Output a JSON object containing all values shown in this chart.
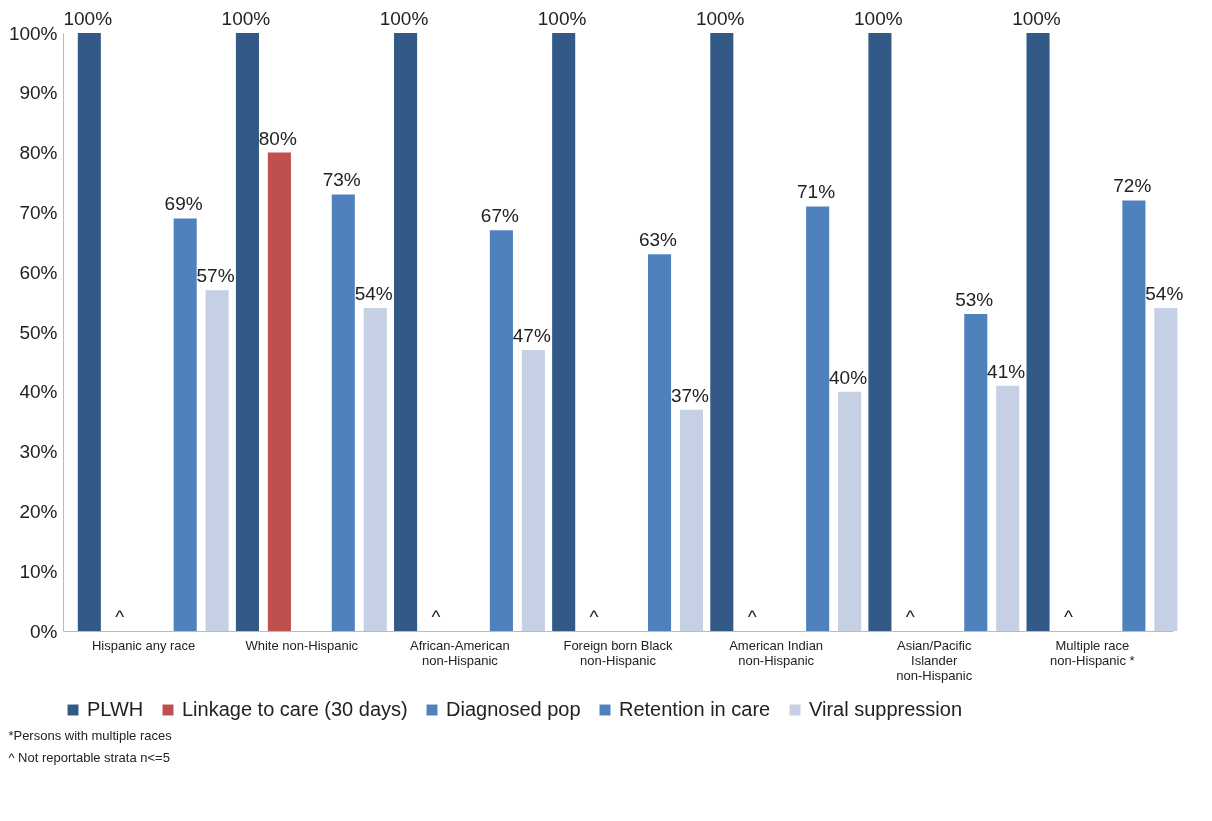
{
  "chart_data": {
    "type": "bar",
    "categories": [
      "Hispanic any race",
      "White non-Hispanic",
      "African-American non-Hispanic",
      "Foreign born Black non-Hispanic",
      "American Indian non-Hispanic",
      "Asian/Pacific Islander non-Hispanic",
      "Multiple race non-Hispanic *"
    ],
    "series": [
      {
        "name": "PLWH",
        "color": "#335a87",
        "values": [
          100,
          100,
          100,
          100,
          100,
          100,
          100
        ],
        "value_labels": [
          "100%",
          "100%",
          "100%",
          "100%",
          "100%",
          "100%",
          "100%"
        ]
      },
      {
        "name": "Linkage to care (30 days)",
        "color": "#c0504d",
        "values": [
          null,
          80,
          null,
          null,
          null,
          null,
          null
        ],
        "value_labels": [
          "^",
          "80%",
          "^",
          "^",
          "^",
          "^",
          "^"
        ]
      },
      {
        "name": "Diagnosed pop",
        "color": "#4f81bd",
        "values": [
          null,
          null,
          null,
          null,
          null,
          null,
          null
        ]
      },
      {
        "name": "Retention in care",
        "color": "#4f81bd",
        "values": [
          69,
          73,
          67,
          63,
          71,
          53,
          72
        ],
        "value_labels": [
          "69%",
          "73%",
          "67%",
          "63%",
          "71%",
          "53%",
          "72%"
        ]
      },
      {
        "name": "Viral suppression",
        "color": "#c5d0e4",
        "values": [
          57,
          54,
          47,
          37,
          40,
          41,
          54
        ],
        "value_labels": [
          "57%",
          "54%",
          "47%",
          "37%",
          "40%",
          "41%",
          "54%"
        ]
      }
    ],
    "ylim": [
      0,
      100
    ],
    "yticks": [
      {
        "value": 0,
        "label": "0%"
      },
      {
        "value": 10,
        "label": "10%"
      },
      {
        "value": 20,
        "label": "20%"
      },
      {
        "value": 30,
        "label": "30%"
      },
      {
        "value": 40,
        "label": "40%"
      },
      {
        "value": 50,
        "label": "50%"
      },
      {
        "value": 60,
        "label": "60%"
      },
      {
        "value": 70,
        "label": "70%"
      },
      {
        "value": 80,
        "label": "80%"
      },
      {
        "value": 90,
        "label": "90%"
      },
      {
        "value": 100,
        "label": "100%"
      }
    ],
    "grid": false,
    "legend": "bottom",
    "annotations": [
      "*Persons with multiple races",
      "^ Not reportable strata n<=5"
    ]
  }
}
